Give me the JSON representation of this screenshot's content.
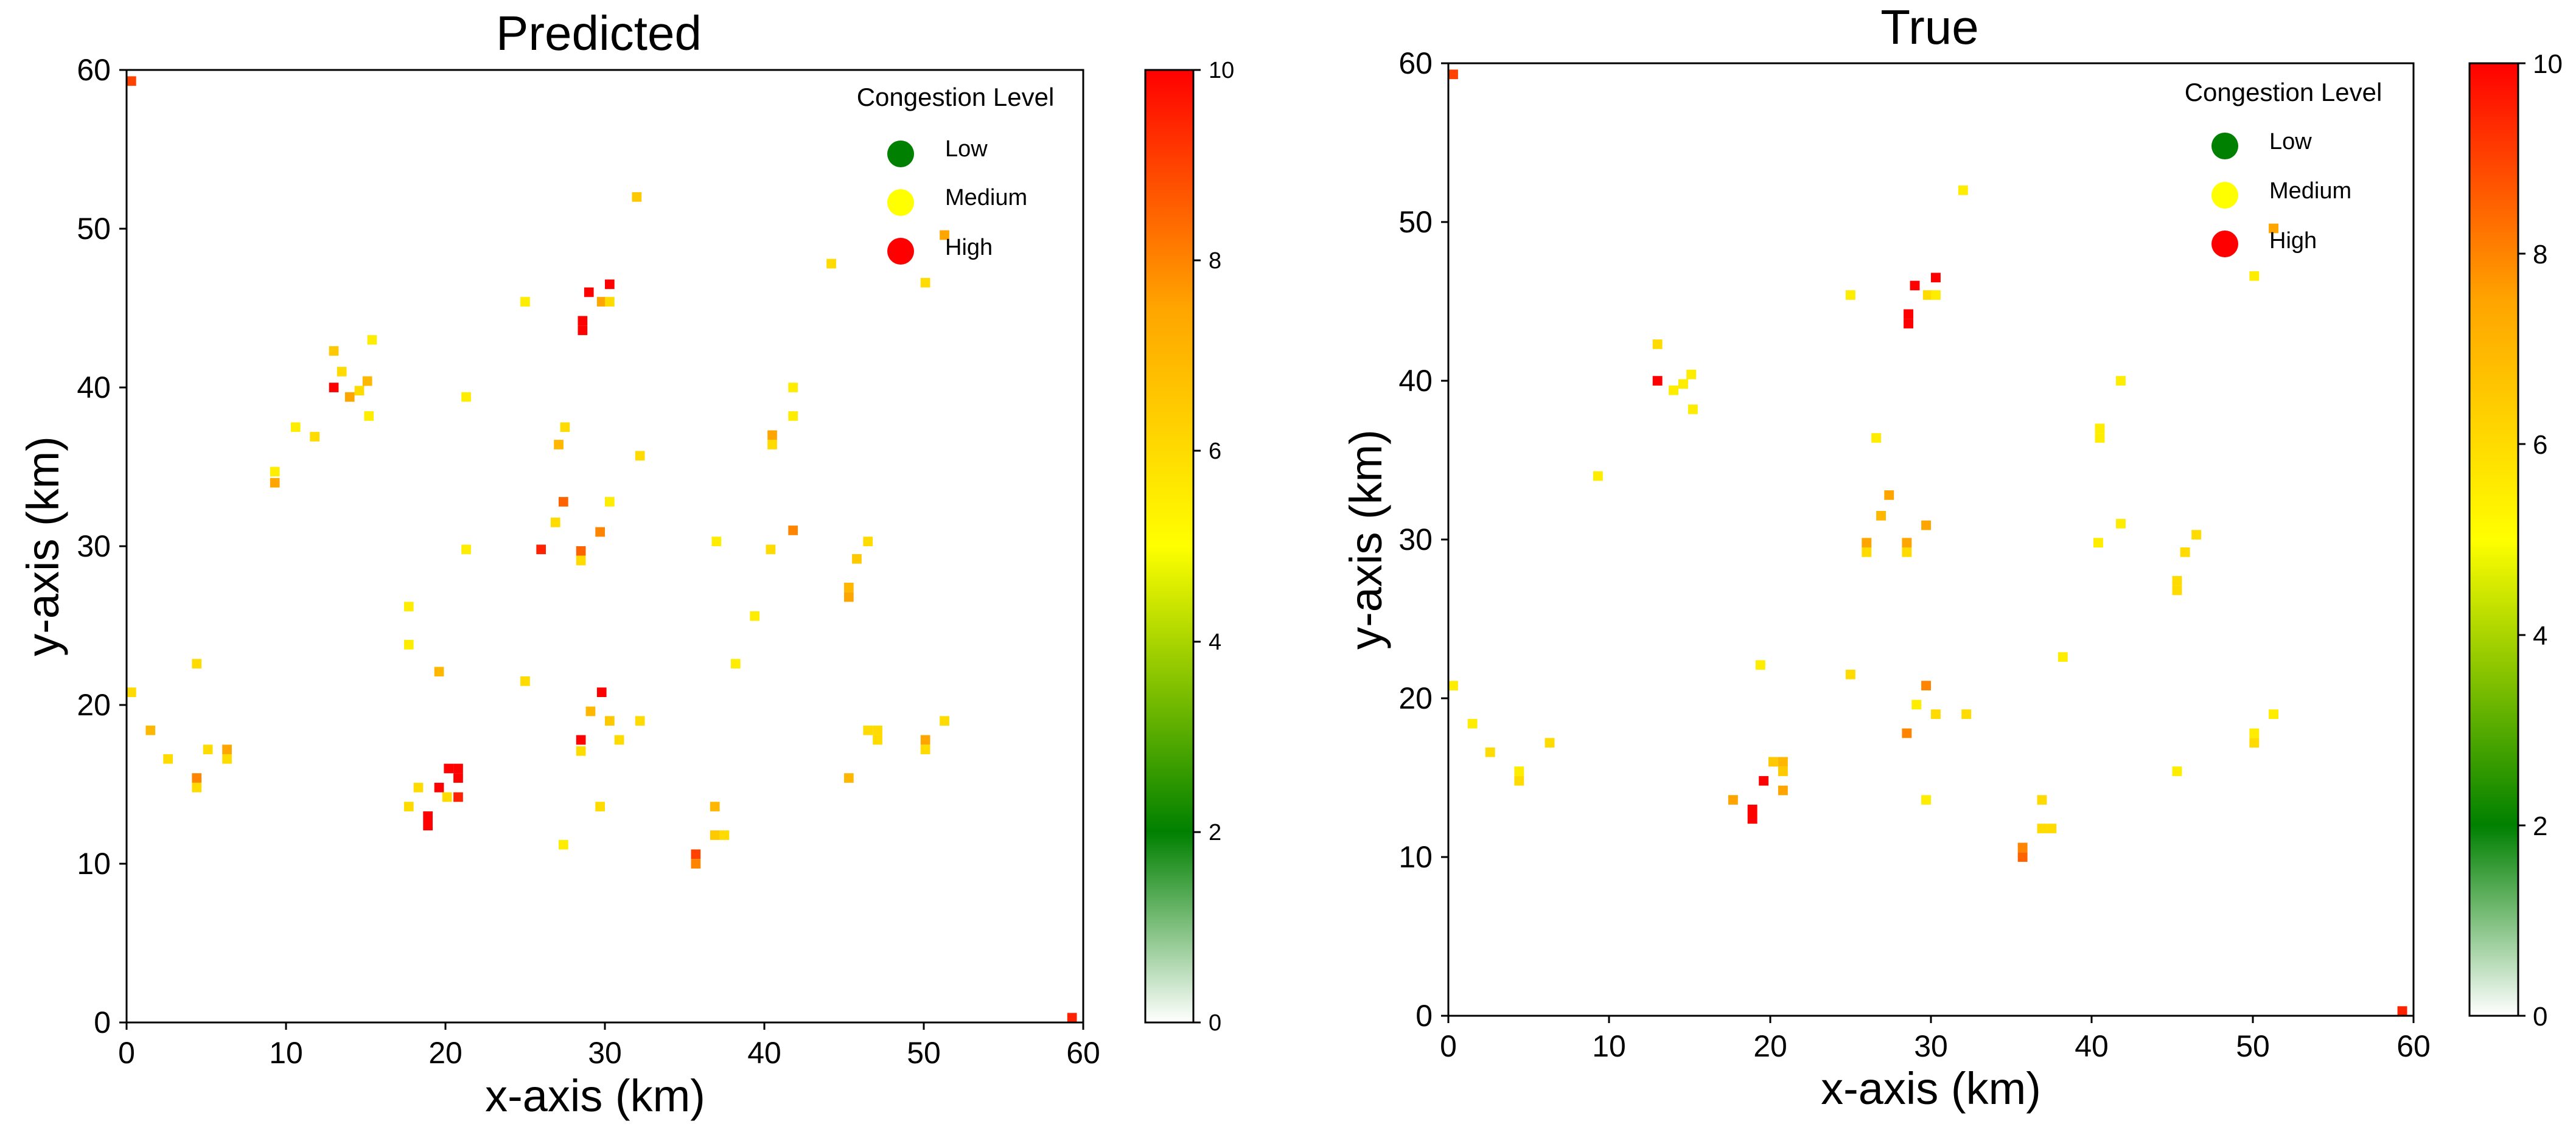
{
  "colors": {
    "low": "#008000",
    "medium": "#ffff00",
    "high": "#ff0000",
    "colormap": [
      "#ffffff",
      "#008000",
      "#ffff00",
      "#ffa500",
      "#ff0000"
    ]
  },
  "chart_data": [
    {
      "type": "heatmap",
      "title": "Predicted",
      "xlabel": "x-axis (km)",
      "ylabel": "y-axis (km)",
      "xlim": [
        0,
        60
      ],
      "ylim": [
        0,
        60
      ],
      "x_ticks": [
        "0",
        "10",
        "20",
        "30",
        "40",
        "50",
        "60"
      ],
      "y_ticks": [
        "0",
        "10",
        "20",
        "30",
        "40",
        "50",
        "60"
      ],
      "colorbar": {
        "range": [
          0,
          10
        ],
        "ticks": [
          "0",
          "2",
          "4",
          "6",
          "8",
          "10"
        ]
      },
      "legend": {
        "title": "Congestion Level",
        "position": "top-right",
        "items": [
          {
            "label": "Low",
            "color": "#008000"
          },
          {
            "label": "Medium",
            "color": "#ffff00"
          },
          {
            "label": "High",
            "color": "#ff0000"
          }
        ]
      },
      "cells": [
        [
          0.3,
          59.3,
          9
        ],
        [
          59.3,
          0.3,
          9.5
        ],
        [
          28.6,
          44.2,
          10
        ],
        [
          28.6,
          43.6,
          10
        ],
        [
          29,
          46,
          10
        ],
        [
          30.3,
          46.5,
          10
        ],
        [
          29.8,
          45.4,
          7.5
        ],
        [
          30.3,
          45.4,
          6
        ],
        [
          32,
          52,
          6.5
        ],
        [
          13,
          42.3,
          6.5
        ],
        [
          13.5,
          41,
          6
        ],
        [
          13,
          40,
          10
        ],
        [
          14,
          39.4,
          7.5
        ],
        [
          14.6,
          39.8,
          6
        ],
        [
          15.1,
          40.4,
          7
        ],
        [
          15.4,
          43,
          5.5
        ],
        [
          15.2,
          38.2,
          5.5
        ],
        [
          11.8,
          36.9,
          6
        ],
        [
          10.6,
          37.5,
          5.5
        ],
        [
          9.3,
          34.7,
          5.5
        ],
        [
          9.3,
          34,
          7.5
        ],
        [
          21.3,
          39.4,
          5.5
        ],
        [
          25,
          45.4,
          5.5
        ],
        [
          27.5,
          37.5,
          6
        ],
        [
          27.1,
          36.4,
          7
        ],
        [
          27.4,
          32.8,
          8.5
        ],
        [
          26.9,
          31.5,
          6
        ],
        [
          26,
          29.8,
          9.5
        ],
        [
          28.5,
          29.7,
          8.5
        ],
        [
          28.5,
          29.1,
          6
        ],
        [
          29.7,
          30.9,
          8
        ],
        [
          30.3,
          32.8,
          5.5
        ],
        [
          32.2,
          35.7,
          6
        ],
        [
          21.3,
          29.8,
          5.5
        ],
        [
          40.5,
          37,
          7.5
        ],
        [
          40.5,
          36.4,
          6
        ],
        [
          41.8,
          40,
          5.5
        ],
        [
          41.8,
          38.2,
          5.5
        ],
        [
          41.8,
          31,
          8
        ],
        [
          40.4,
          29.8,
          6
        ],
        [
          37,
          30.3,
          5.5
        ],
        [
          46.5,
          30.3,
          6
        ],
        [
          45.8,
          29.2,
          6.5
        ],
        [
          45.3,
          27.4,
          7
        ],
        [
          45.3,
          26.8,
          7.5
        ],
        [
          39.4,
          25.6,
          5.5
        ],
        [
          38.2,
          22.6,
          5.5
        ],
        [
          44.2,
          47.8,
          6
        ],
        [
          51.3,
          49.6,
          7.5
        ],
        [
          50.1,
          46.6,
          6
        ],
        [
          0.3,
          20.8,
          6
        ],
        [
          1.5,
          18.4,
          7
        ],
        [
          2.6,
          16.6,
          6
        ],
        [
          4.4,
          22.6,
          6
        ],
        [
          4.4,
          15.4,
          8
        ],
        [
          4.4,
          14.8,
          6
        ],
        [
          5.1,
          17.2,
          6
        ],
        [
          6.3,
          17.2,
          7.5
        ],
        [
          6.3,
          16.6,
          6
        ],
        [
          17.7,
          26.2,
          5.5
        ],
        [
          17.7,
          23.8,
          5.5
        ],
        [
          19.6,
          22.1,
          7
        ],
        [
          17.7,
          13.6,
          6
        ],
        [
          18.3,
          14.8,
          6
        ],
        [
          18.9,
          13,
          10
        ],
        [
          18.9,
          12.4,
          10
        ],
        [
          19.6,
          14.8,
          10
        ],
        [
          20.1,
          14.2,
          6
        ],
        [
          20.2,
          16,
          10
        ],
        [
          20.8,
          16,
          10
        ],
        [
          20.8,
          15.4,
          10
        ],
        [
          20.8,
          14.2,
          9.5
        ],
        [
          25,
          21.5,
          6
        ],
        [
          28.5,
          17.8,
          10
        ],
        [
          28.5,
          17.1,
          6
        ],
        [
          29.1,
          19.6,
          7
        ],
        [
          29.8,
          20.8,
          10
        ],
        [
          30.3,
          19,
          6.5
        ],
        [
          30.9,
          17.8,
          6
        ],
        [
          32.2,
          19,
          6
        ],
        [
          29.7,
          13.6,
          6
        ],
        [
          27.4,
          11.2,
          5.5
        ],
        [
          36.9,
          13.6,
          7
        ],
        [
          36.9,
          11.8,
          6.5
        ],
        [
          37.5,
          11.8,
          6
        ],
        [
          35.7,
          10.6,
          9
        ],
        [
          35.7,
          10,
          8
        ],
        [
          45.3,
          15.4,
          7
        ],
        [
          46.5,
          18.4,
          6
        ],
        [
          47.1,
          18.4,
          6
        ],
        [
          47.1,
          17.8,
          6
        ],
        [
          50.1,
          17.8,
          7.5
        ],
        [
          50.1,
          17.2,
          6
        ],
        [
          51.3,
          19,
          6
        ]
      ]
    },
    {
      "type": "heatmap",
      "title": "True",
      "xlabel": "x-axis (km)",
      "ylabel": "y-axis (km)",
      "xlim": [
        0,
        60
      ],
      "ylim": [
        0,
        60
      ],
      "x_ticks": [
        "0",
        "10",
        "20",
        "30",
        "40",
        "50",
        "60"
      ],
      "y_ticks": [
        "0",
        "10",
        "20",
        "30",
        "40",
        "50",
        "60"
      ],
      "colorbar": {
        "range": [
          0,
          10
        ],
        "ticks": [
          "0",
          "2",
          "4",
          "6",
          "8",
          "10"
        ]
      },
      "legend": {
        "title": "Congestion Level",
        "position": "top-right",
        "items": [
          {
            "label": "Low",
            "color": "#008000"
          },
          {
            "label": "Medium",
            "color": "#ffff00"
          },
          {
            "label": "High",
            "color": "#ff0000"
          }
        ]
      },
      "cells": [
        [
          0.3,
          59.3,
          9
        ],
        [
          59.3,
          0.3,
          9.5
        ],
        [
          28.6,
          44.2,
          10
        ],
        [
          28.6,
          43.6,
          10
        ],
        [
          29,
          46,
          10
        ],
        [
          30.3,
          46.5,
          10
        ],
        [
          29.8,
          45.4,
          6
        ],
        [
          30.3,
          45.4,
          5.5
        ],
        [
          32,
          52,
          5.5
        ],
        [
          25,
          45.4,
          5.5
        ],
        [
          13,
          42.3,
          6
        ],
        [
          13,
          40,
          10
        ],
        [
          14,
          39.4,
          5.5
        ],
        [
          14.6,
          39.8,
          5.5
        ],
        [
          15.1,
          40.4,
          5.5
        ],
        [
          15.2,
          38.2,
          5.5
        ],
        [
          9.3,
          34,
          5.5
        ],
        [
          26.6,
          36.4,
          5.5
        ],
        [
          27.4,
          32.8,
          7.5
        ],
        [
          26.9,
          31.5,
          7
        ],
        [
          26,
          29.8,
          7.5
        ],
        [
          26,
          29.2,
          6
        ],
        [
          28.5,
          29.8,
          7.5
        ],
        [
          28.5,
          29.2,
          6
        ],
        [
          29.7,
          30.9,
          7.5
        ],
        [
          40.5,
          37,
          5.5
        ],
        [
          40.5,
          36.4,
          5.5
        ],
        [
          41.8,
          40,
          5.5
        ],
        [
          41.8,
          31,
          5.5
        ],
        [
          40.4,
          29.8,
          5.5
        ],
        [
          46.5,
          30.3,
          6
        ],
        [
          45.8,
          29.2,
          6
        ],
        [
          45.3,
          27.4,
          6
        ],
        [
          45.3,
          26.8,
          6
        ],
        [
          38.2,
          22.6,
          5.5
        ],
        [
          51.3,
          49.6,
          7.5
        ],
        [
          50.1,
          46.6,
          5.5
        ],
        [
          0.3,
          20.8,
          5.5
        ],
        [
          1.5,
          18.4,
          5.5
        ],
        [
          2.6,
          16.6,
          6
        ],
        [
          4.4,
          15.4,
          5.5
        ],
        [
          4.4,
          14.8,
          6
        ],
        [
          6.3,
          17.2,
          6
        ],
        [
          19.4,
          22.1,
          5.5
        ],
        [
          17.7,
          13.6,
          7.5
        ],
        [
          18.9,
          13,
          10
        ],
        [
          18.9,
          12.4,
          10
        ],
        [
          19.6,
          14.8,
          10
        ],
        [
          20.2,
          16,
          6.5
        ],
        [
          20.8,
          16,
          7
        ],
        [
          20.8,
          15.4,
          6.5
        ],
        [
          20.8,
          14.2,
          7.5
        ],
        [
          25,
          21.5,
          6
        ],
        [
          28.5,
          17.8,
          8
        ],
        [
          29.7,
          20.8,
          8
        ],
        [
          29.1,
          19.6,
          5.5
        ],
        [
          30.3,
          19,
          6
        ],
        [
          32.2,
          19,
          6
        ],
        [
          29.7,
          13.6,
          5.5
        ],
        [
          36.9,
          13.6,
          6
        ],
        [
          36.9,
          11.8,
          6
        ],
        [
          37.5,
          11.8,
          6
        ],
        [
          35.7,
          10.6,
          8
        ],
        [
          35.7,
          10,
          8.5
        ],
        [
          45.3,
          15.4,
          5.5
        ],
        [
          50.1,
          17.8,
          5.5
        ],
        [
          50.1,
          17.2,
          6
        ],
        [
          51.3,
          19,
          5.5
        ]
      ]
    }
  ]
}
